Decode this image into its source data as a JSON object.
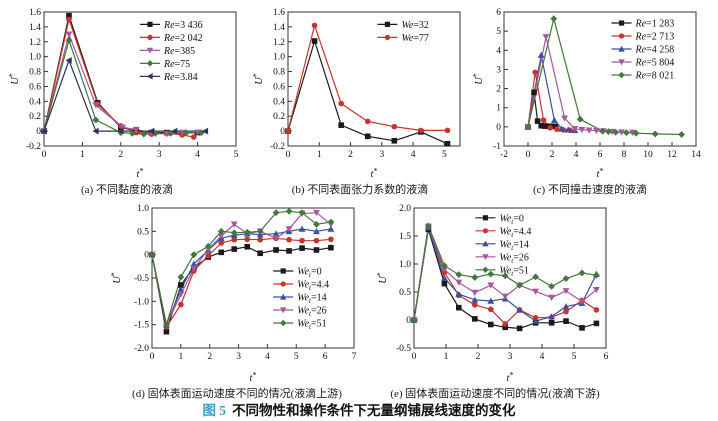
{
  "figure": {
    "main_caption_prefix": "图 5",
    "main_caption_text": "不同物性和操作条件下无量纲铺展线速度的变化",
    "accent_color": "#3a9ec2",
    "background": "#ffffff"
  },
  "chart_data": [
    {
      "id": "a",
      "type": "line",
      "caption": "(a) 不同黏度的液滴",
      "xlabel": "t*",
      "ylabel": "U*",
      "xlim": [
        0,
        5
      ],
      "ylim": [
        -0.2,
        1.6
      ],
      "xticks": [
        0,
        1,
        2,
        3,
        4,
        5
      ],
      "yticks": [
        -0.2,
        0,
        0.2,
        0.4,
        0.6,
        0.8,
        1.0,
        1.2,
        1.4,
        1.6
      ],
      "xdecimals": 0,
      "ydecimals": 1,
      "legend": {
        "fx": 0.5,
        "fy": 0.04
      },
      "series": [
        {
          "label": {
            "v": "Re",
            "s": "",
            "t": "=3 436"
          },
          "color": "#1a1a1a",
          "marker": "square",
          "x": [
            0,
            0.65,
            1.4,
            2.0,
            2.4,
            2.8,
            3.2,
            3.6,
            4.0
          ],
          "y": [
            0,
            1.55,
            0.38,
            0.05,
            0,
            -0.02,
            -0.02,
            -0.03,
            -0.02
          ]
        },
        {
          "label": {
            "v": "Re",
            "s": "",
            "t": "=2 042"
          },
          "color": "#c8342c",
          "marker": "circle",
          "x": [
            0,
            0.65,
            1.4,
            2.0,
            2.4,
            2.8,
            3.2,
            3.6,
            3.9
          ],
          "y": [
            0,
            1.5,
            0.36,
            0.07,
            -0.02,
            -0.04,
            -0.03,
            -0.05,
            -0.08
          ]
        },
        {
          "label": {
            "v": "Re",
            "s": "",
            "t": "=385"
          },
          "color": "#a8569f",
          "marker": "triangle-down",
          "x": [
            0,
            0.65,
            1.35,
            2.05,
            2.4,
            2.8,
            3.2,
            3.6,
            4.0
          ],
          "y": [
            0,
            1.3,
            0.35,
            0.05,
            0.02,
            -0.02,
            -0.04,
            -0.02,
            -0.02
          ]
        },
        {
          "label": {
            "v": "Re",
            "s": "",
            "t": "=75"
          },
          "color": "#41793b",
          "marker": "diamond",
          "x": [
            0,
            0.65,
            1.35,
            2.0,
            2.3,
            2.6,
            2.9,
            3.3,
            3.7,
            4.1
          ],
          "y": [
            0,
            1.22,
            0.15,
            -0.02,
            -0.03,
            -0.04,
            -0.03,
            -0.03,
            -0.02,
            -0.02
          ]
        },
        {
          "label": {
            "v": "Re",
            "s": "",
            "t": "=3.84"
          },
          "color": "#32325a",
          "marker": "triangle-left",
          "x": [
            0,
            0.65,
            1.35,
            2.0,
            2.8,
            3.4,
            4.2
          ],
          "y": [
            0,
            0.95,
            0,
            0,
            0,
            0,
            0
          ]
        }
      ]
    },
    {
      "id": "b",
      "type": "line",
      "caption": "(b) 不同表面张力系数的液滴",
      "xlabel": "t*",
      "ylabel": "U*",
      "xlim": [
        0,
        5.5
      ],
      "ylim": [
        -0.2,
        1.6
      ],
      "xticks": [
        0,
        1,
        2,
        3,
        4,
        5
      ],
      "yticks": [
        -0.2,
        0,
        0.2,
        0.4,
        0.6,
        0.8,
        1.0,
        1.2,
        1.4,
        1.6
      ],
      "xdecimals": 0,
      "ydecimals": 1,
      "legend": {
        "fx": 0.52,
        "fy": 0.04
      },
      "series": [
        {
          "label": {
            "v": "We",
            "s": "",
            "t": "=32"
          },
          "color": "#1a1a1a",
          "marker": "square",
          "x": [
            0,
            0.85,
            1.7,
            2.55,
            3.4,
            4.25,
            5.1
          ],
          "y": [
            0,
            1.21,
            0.08,
            -0.07,
            -0.13,
            -0.01,
            -0.17
          ]
        },
        {
          "label": {
            "v": "We",
            "s": "",
            "t": "=77"
          },
          "color": "#c8342c",
          "marker": "circle",
          "x": [
            0,
            0.85,
            1.7,
            2.55,
            3.4,
            4.25,
            5.1
          ],
          "y": [
            0,
            1.42,
            0.37,
            0.13,
            0.06,
            0.01,
            0.01
          ]
        }
      ]
    },
    {
      "id": "c",
      "type": "line",
      "caption": "(c) 不同撞击速度的液滴",
      "xlabel": "t*",
      "ylabel": "U*",
      "xlim": [
        -2,
        14
      ],
      "ylim": [
        -1,
        6
      ],
      "xticks": [
        -2,
        0,
        2,
        4,
        6,
        8,
        10,
        12,
        14
      ],
      "yticks": [
        -1,
        0,
        1,
        2,
        3,
        4,
        5,
        6
      ],
      "xdecimals": 0,
      "ydecimals": 0,
      "legend": {
        "fx": 0.56,
        "fy": 0.03
      },
      "series": [
        {
          "label": {
            "v": "Re",
            "s": "",
            "t": "=1 283"
          },
          "color": "#1a1a1a",
          "marker": "square",
          "x": [
            0,
            0.5,
            0.8,
            1.1,
            1.4,
            1.7,
            2.0,
            2.3
          ],
          "y": [
            0,
            1.8,
            0.3,
            0.06,
            0.04,
            0.03,
            0.03,
            0.02
          ]
        },
        {
          "label": {
            "v": "Re",
            "s": "",
            "t": "=2 713"
          },
          "color": "#c8342c",
          "marker": "circle",
          "x": [
            0,
            0.6,
            1.3,
            1.85,
            2.4,
            2.95,
            3.5
          ],
          "y": [
            0,
            2.85,
            0.35,
            -0.05,
            -0.12,
            -0.16,
            -0.18
          ]
        },
        {
          "label": {
            "v": "Re",
            "s": "",
            "t": "=4 258"
          },
          "color": "#3a4f9f",
          "marker": "triangle-up",
          "x": [
            0,
            1.1,
            2.2,
            2.8,
            3.35,
            3.9
          ],
          "y": [
            0,
            3.75,
            0.35,
            -0.1,
            -0.15,
            -0.18
          ]
        },
        {
          "label": {
            "v": "Re",
            "s": "",
            "t": "=5 804"
          },
          "color": "#a8569f",
          "marker": "triangle-down",
          "x": [
            0,
            1.5,
            3.05,
            3.9,
            4.5,
            5.1,
            5.7,
            6.3,
            7.0,
            7.8,
            8.7
          ],
          "y": [
            0,
            4.7,
            0.45,
            -0.1,
            -0.15,
            -0.18,
            -0.2,
            -0.22,
            -0.25,
            -0.28,
            -0.3
          ]
        },
        {
          "label": {
            "v": "Re",
            "s": "",
            "t": "=8 021"
          },
          "color": "#41793b",
          "marker": "diamond",
          "x": [
            0,
            2.15,
            4.35,
            6.2,
            6.7,
            7.3,
            8.2,
            9.0,
            10.6,
            12.8
          ],
          "y": [
            0,
            5.65,
            0.4,
            -0.22,
            -0.25,
            -0.28,
            -0.3,
            -0.33,
            -0.37,
            -0.4
          ]
        }
      ]
    },
    {
      "id": "d",
      "type": "line",
      "caption": "(d) 固体表面运动速度不同的情况(液滴上游)",
      "xlabel": "t*",
      "ylabel": "U*",
      "xlim": [
        0,
        7
      ],
      "ylim": [
        -2,
        1
      ],
      "xticks": [
        0,
        1,
        2,
        3,
        4,
        5,
        6,
        7
      ],
      "yticks": [
        -2.0,
        -1.5,
        -1.0,
        -0.5,
        0,
        0.5,
        1.0
      ],
      "xdecimals": 0,
      "ydecimals": 1,
      "legend": {
        "fx": 0.6,
        "fy": 0.4
      },
      "series": [
        {
          "label": {
            "v": "We",
            "s": "t",
            "t": "=0"
          },
          "color": "#1a1a1a",
          "marker": "square",
          "x": [
            0,
            0.5,
            1.0,
            1.45,
            1.95,
            2.4,
            2.85,
            3.3,
            3.75,
            4.3,
            4.75,
            5.2,
            5.7,
            6.2
          ],
          "y": [
            0,
            -1.65,
            -0.65,
            -0.28,
            -0.05,
            0.05,
            0.12,
            0.17,
            0.03,
            0.1,
            0.08,
            0.14,
            0.1,
            0.15
          ]
        },
        {
          "label": {
            "v": "We",
            "s": "t",
            "t": "=4.4"
          },
          "color": "#c8342c",
          "marker": "circle",
          "x": [
            0,
            0.5,
            1.0,
            1.45,
            1.95,
            2.4,
            2.85,
            3.3,
            3.75,
            4.3,
            4.75,
            5.2,
            5.7,
            6.2
          ],
          "y": [
            0,
            -1.55,
            -1.07,
            -0.35,
            -0.02,
            0.25,
            0.32,
            0.33,
            0.32,
            0.35,
            0.32,
            0.3,
            0.3,
            0.33
          ]
        },
        {
          "label": {
            "v": "We",
            "s": "t",
            "t": "=14"
          },
          "color": "#3a4f9f",
          "marker": "triangle-up",
          "x": [
            0,
            0.5,
            1.0,
            1.45,
            1.95,
            2.4,
            2.85,
            3.3,
            3.75,
            4.3,
            4.75,
            5.2,
            5.7,
            6.2
          ],
          "y": [
            0,
            -1.5,
            -0.75,
            -0.2,
            0.1,
            0.35,
            0.42,
            0.45,
            0.43,
            0.45,
            0.5,
            0.55,
            0.5,
            0.55
          ]
        },
        {
          "label": {
            "v": "We",
            "s": "t",
            "t": "=26"
          },
          "color": "#a8569f",
          "marker": "triangle-down",
          "x": [
            0,
            0.5,
            1.0,
            1.45,
            1.95,
            2.4,
            2.85,
            3.3,
            3.75,
            4.3,
            4.75,
            5.2,
            5.7,
            6.2
          ],
          "y": [
            0,
            -1.5,
            -0.85,
            -0.3,
            0.12,
            0.4,
            0.65,
            0.45,
            0.5,
            0.35,
            0.55,
            0.88,
            0.9,
            0.65
          ]
        },
        {
          "label": {
            "v": "We",
            "s": "t",
            "t": "=51"
          },
          "color": "#41793b",
          "marker": "diamond",
          "x": [
            0,
            0.5,
            1.0,
            1.45,
            1.95,
            2.4,
            2.85,
            3.3,
            3.75,
            4.3,
            4.75,
            5.2,
            5.7,
            6.2
          ],
          "y": [
            0,
            -1.5,
            -0.48,
            0.0,
            0.18,
            0.5,
            0.47,
            0.48,
            0.5,
            0.9,
            0.93,
            0.9,
            0.65,
            0.7
          ]
        }
      ]
    },
    {
      "id": "e",
      "type": "line",
      "caption": "(e) 固体表面运动速度不同的情况(液滴下游)",
      "xlabel": "t*",
      "ylabel": "U*",
      "xlim": [
        0,
        6
      ],
      "ylim": [
        -0.5,
        2
      ],
      "xticks": [
        0,
        1,
        2,
        3,
        4,
        5,
        6
      ],
      "yticks": [
        -0.5,
        0,
        0.5,
        1.0,
        1.5,
        2.0
      ],
      "xdecimals": 0,
      "ydecimals": 1,
      "legend": {
        "fx": 0.32,
        "fy": 0.02
      },
      "series": [
        {
          "label": {
            "v": "We",
            "s": "t",
            "t": "=0"
          },
          "color": "#1a1a1a",
          "marker": "square",
          "x": [
            0,
            0.45,
            0.95,
            1.4,
            1.9,
            2.4,
            2.85,
            3.3,
            3.8,
            4.3,
            4.75,
            5.25,
            5.7
          ],
          "y": [
            0,
            1.62,
            0.65,
            0.22,
            0.02,
            -0.08,
            -0.13,
            -0.15,
            -0.05,
            -0.05,
            -0.02,
            -0.14,
            -0.06
          ]
        },
        {
          "label": {
            "v": "We",
            "s": "t",
            "t": "=4.4"
          },
          "color": "#c8342c",
          "marker": "circle",
          "x": [
            0,
            0.45,
            0.95,
            1.4,
            1.9,
            2.4,
            2.85,
            3.3,
            3.8,
            4.3,
            4.75,
            5.25,
            5.7
          ],
          "y": [
            0,
            1.65,
            0.85,
            0.44,
            0.27,
            0.19,
            -0.07,
            0.18,
            0.04,
            0.05,
            0.15,
            0.35,
            0.18
          ]
        },
        {
          "label": {
            "v": "We",
            "s": "t",
            "t": "=14"
          },
          "color": "#3a4f9f",
          "marker": "triangle-up",
          "x": [
            0,
            0.45,
            0.95,
            1.4,
            1.9,
            2.4,
            2.85,
            3.3,
            3.8,
            4.3,
            4.75,
            5.25,
            5.7
          ],
          "y": [
            0,
            1.65,
            0.75,
            0.46,
            0.36,
            0.34,
            0.38,
            0.18,
            -0.02,
            0.06,
            0.24,
            0.3,
            0.82
          ]
        },
        {
          "label": {
            "v": "We",
            "s": "t",
            "t": "=26"
          },
          "color": "#a8569f",
          "marker": "triangle-down",
          "x": [
            0,
            0.45,
            0.95,
            1.4,
            1.9,
            2.4,
            2.85,
            3.3,
            3.8,
            4.3,
            4.75,
            5.25,
            5.7
          ],
          "y": [
            0,
            1.67,
            0.9,
            0.67,
            0.49,
            0.62,
            0.42,
            0.62,
            0.51,
            0.4,
            0.52,
            0.33,
            0.54
          ]
        },
        {
          "label": {
            "v": "We",
            "s": "t",
            "t": "=51"
          },
          "color": "#41793b",
          "marker": "diamond",
          "x": [
            0,
            0.45,
            0.95,
            1.4,
            1.9,
            2.4,
            2.85,
            3.3,
            3.8,
            4.3,
            4.75,
            5.25,
            5.7
          ],
          "y": [
            0,
            1.68,
            0.97,
            0.81,
            0.76,
            0.82,
            0.79,
            0.62,
            0.77,
            0.6,
            0.74,
            0.84,
            0.8
          ]
        }
      ]
    }
  ]
}
